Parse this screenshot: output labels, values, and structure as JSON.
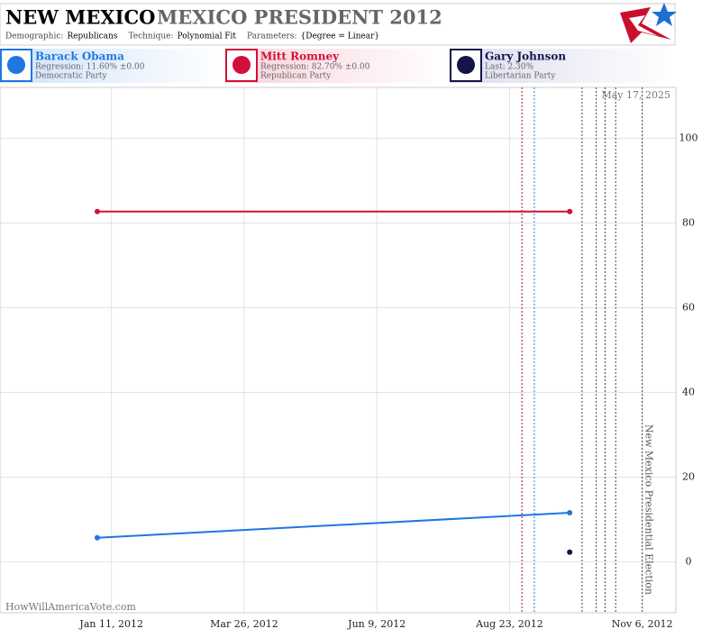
{
  "header": {
    "title": "NEW MEXICO",
    "subtitle": "MEXICO PRESIDENT 2012",
    "params": [
      {
        "label": "Demographic:",
        "value": "Republicans"
      },
      {
        "label": "Technique:",
        "value": "Polynomial Fit"
      },
      {
        "label": "Parameters:",
        "value": "{Degree = Linear}"
      }
    ]
  },
  "chart_data": {
    "type": "line",
    "xlim": [
      "2011-11-09",
      "2012-11-25"
    ],
    "xticks": [
      {
        "value": "2012-01-11",
        "label": "Jan 11, 2012"
      },
      {
        "value": "2012-03-26",
        "label": "Mar 26, 2012"
      },
      {
        "value": "2012-06-09",
        "label": "Jun 9, 2012"
      },
      {
        "value": "2012-08-23",
        "label": "Aug 23, 2012"
      },
      {
        "value": "2012-11-06",
        "label": "Nov 6, 2012"
      }
    ],
    "ylim": [
      -12,
      112
    ],
    "yticks": [
      0,
      20,
      40,
      60,
      80,
      100
    ],
    "grid": true,
    "series": [
      {
        "name": "Barack Obama",
        "detail": "Regression: 11.60% ±0.00",
        "party": "Democratic Party",
        "color": "#1f77e0",
        "x": [
          "2012-01-03",
          "2012-09-26"
        ],
        "values": [
          5.7,
          11.6
        ]
      },
      {
        "name": "Mitt Romney",
        "detail": "Regression: 82.70% ±0.00",
        "party": "Republican Party",
        "color": "#d0103a",
        "x": [
          "2012-01-03",
          "2012-09-26"
        ],
        "values": [
          82.7,
          82.7
        ]
      },
      {
        "name": "Gary Johnson",
        "detail": "Last: 2.30%",
        "party": "Libertarian Party",
        "color": "#14144a",
        "x": [
          "2012-09-26"
        ],
        "values": [
          2.3
        ]
      }
    ],
    "events": [
      {
        "date": "2012-08-30",
        "color": "#a0102a"
      },
      {
        "date": "2012-09-06",
        "color": "#1f77e0"
      },
      {
        "date": "2012-10-03",
        "color": "#444"
      },
      {
        "date": "2012-10-11",
        "color": "#444"
      },
      {
        "date": "2012-10-16",
        "color": "#444"
      },
      {
        "date": "2012-10-22",
        "color": "#444"
      },
      {
        "date": "2012-11-06",
        "color": "#444",
        "label": "New Mexico Presidential Election"
      }
    ],
    "date_note": "May 17, 2025",
    "credit": "HowWillAmericaVote.com"
  }
}
